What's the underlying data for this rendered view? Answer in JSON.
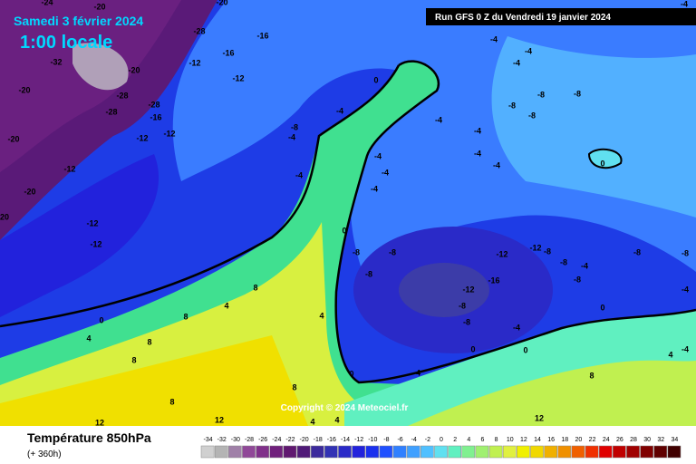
{
  "header": {
    "date": "Samedi 3 février 2024",
    "time": "1:00 locale",
    "run": "Run GFS 0 Z du Vendredi 19 janvier 2024"
  },
  "copyright": "Copyright © 2024 Meteociel.fr",
  "footer": {
    "title": "Température 850hPa",
    "subtitle": "(+ 360h)"
  },
  "scale": {
    "ticks": [
      "-34",
      "-32",
      "-30",
      "-28",
      "-26",
      "-24",
      "-22",
      "-20",
      "-18",
      "-16",
      "-14",
      "-12",
      "-10",
      "-8",
      "-6",
      "-4",
      "-2",
      "0",
      "2",
      "4",
      "6",
      "8",
      "10",
      "12",
      "14",
      "16",
      "18",
      "20",
      "22",
      "24",
      "26",
      "28",
      "30",
      "32",
      "34"
    ],
    "colors": [
      "#d0d0d0",
      "#b4b4b4",
      "#a080a8",
      "#904898",
      "#80308a",
      "#70207c",
      "#601870",
      "#501a78",
      "#3c2a9c",
      "#3232b4",
      "#2a2ac8",
      "#2222dc",
      "#1a30ee",
      "#2050ff",
      "#3080ff",
      "#40a0ff",
      "#50c0ff",
      "#60e0f0",
      "#60f0c0",
      "#80f090",
      "#a0f070",
      "#c0f050",
      "#e0f040",
      "#f0f000",
      "#f0d800",
      "#f0b000",
      "#f09000",
      "#f06000",
      "#f03000",
      "#e00000",
      "#c00000",
      "#a00000",
      "#800000",
      "#600000",
      "#400000"
    ]
  },
  "map_labels": [
    "-20",
    "-24",
    "-20",
    "-4",
    "-28",
    "-16",
    "-32",
    "-20",
    "-16",
    "-12",
    "-12",
    "-4",
    "-4",
    "-4",
    "0",
    "-20",
    "-28",
    "-28",
    "-8",
    "-8",
    "-28",
    "-16",
    "-4",
    "-4",
    "-8",
    "-8",
    "-20",
    "-12",
    "-12",
    "-4",
    "-8",
    "-4",
    "-4",
    "-4",
    "-4",
    "0",
    "-12",
    "-4",
    "-4",
    "-4",
    "-20",
    "20",
    "-12",
    "0",
    "-12",
    "-8",
    "-12",
    "-12",
    "-8",
    "-8",
    "-8",
    "-8",
    "-8",
    "-8",
    "-16",
    "-12",
    "-8",
    "-4",
    "8",
    "4",
    "-8",
    "0",
    "-4",
    "4",
    "8",
    "0",
    "-8",
    "-4",
    "4",
    "8",
    "0",
    "0",
    "4",
    "-4",
    "8",
    "0",
    "-4",
    "8",
    "8",
    "8",
    "4",
    "12",
    "4",
    "12",
    "12"
  ]
}
